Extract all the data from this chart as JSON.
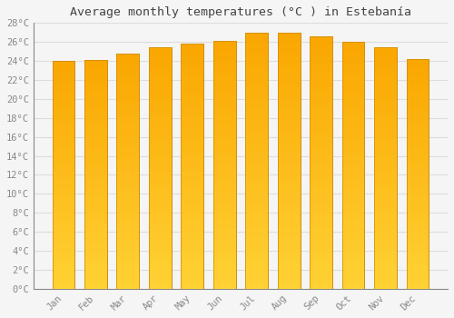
{
  "title": "Average monthly temperatures (°C ) in Estebanía",
  "months": [
    "Jan",
    "Feb",
    "Mar",
    "Apr",
    "May",
    "Jun",
    "Jul",
    "Aug",
    "Sep",
    "Oct",
    "Nov",
    "Dec"
  ],
  "values": [
    24.0,
    24.1,
    24.8,
    25.4,
    25.8,
    26.1,
    27.0,
    27.0,
    26.6,
    26.0,
    25.4,
    24.2
  ],
  "bar_color": "#FFA500",
  "bar_color_light": "#FFD080",
  "bar_edge_color": "#CC8800",
  "ylim": [
    0,
    28
  ],
  "ytick_step": 2,
  "background_color": "#f5f5f5",
  "grid_color": "#dddddd",
  "title_fontsize": 9.5,
  "tick_fontsize": 7.5,
  "title_color": "#444444",
  "tick_color": "#888888",
  "bar_width": 0.7
}
